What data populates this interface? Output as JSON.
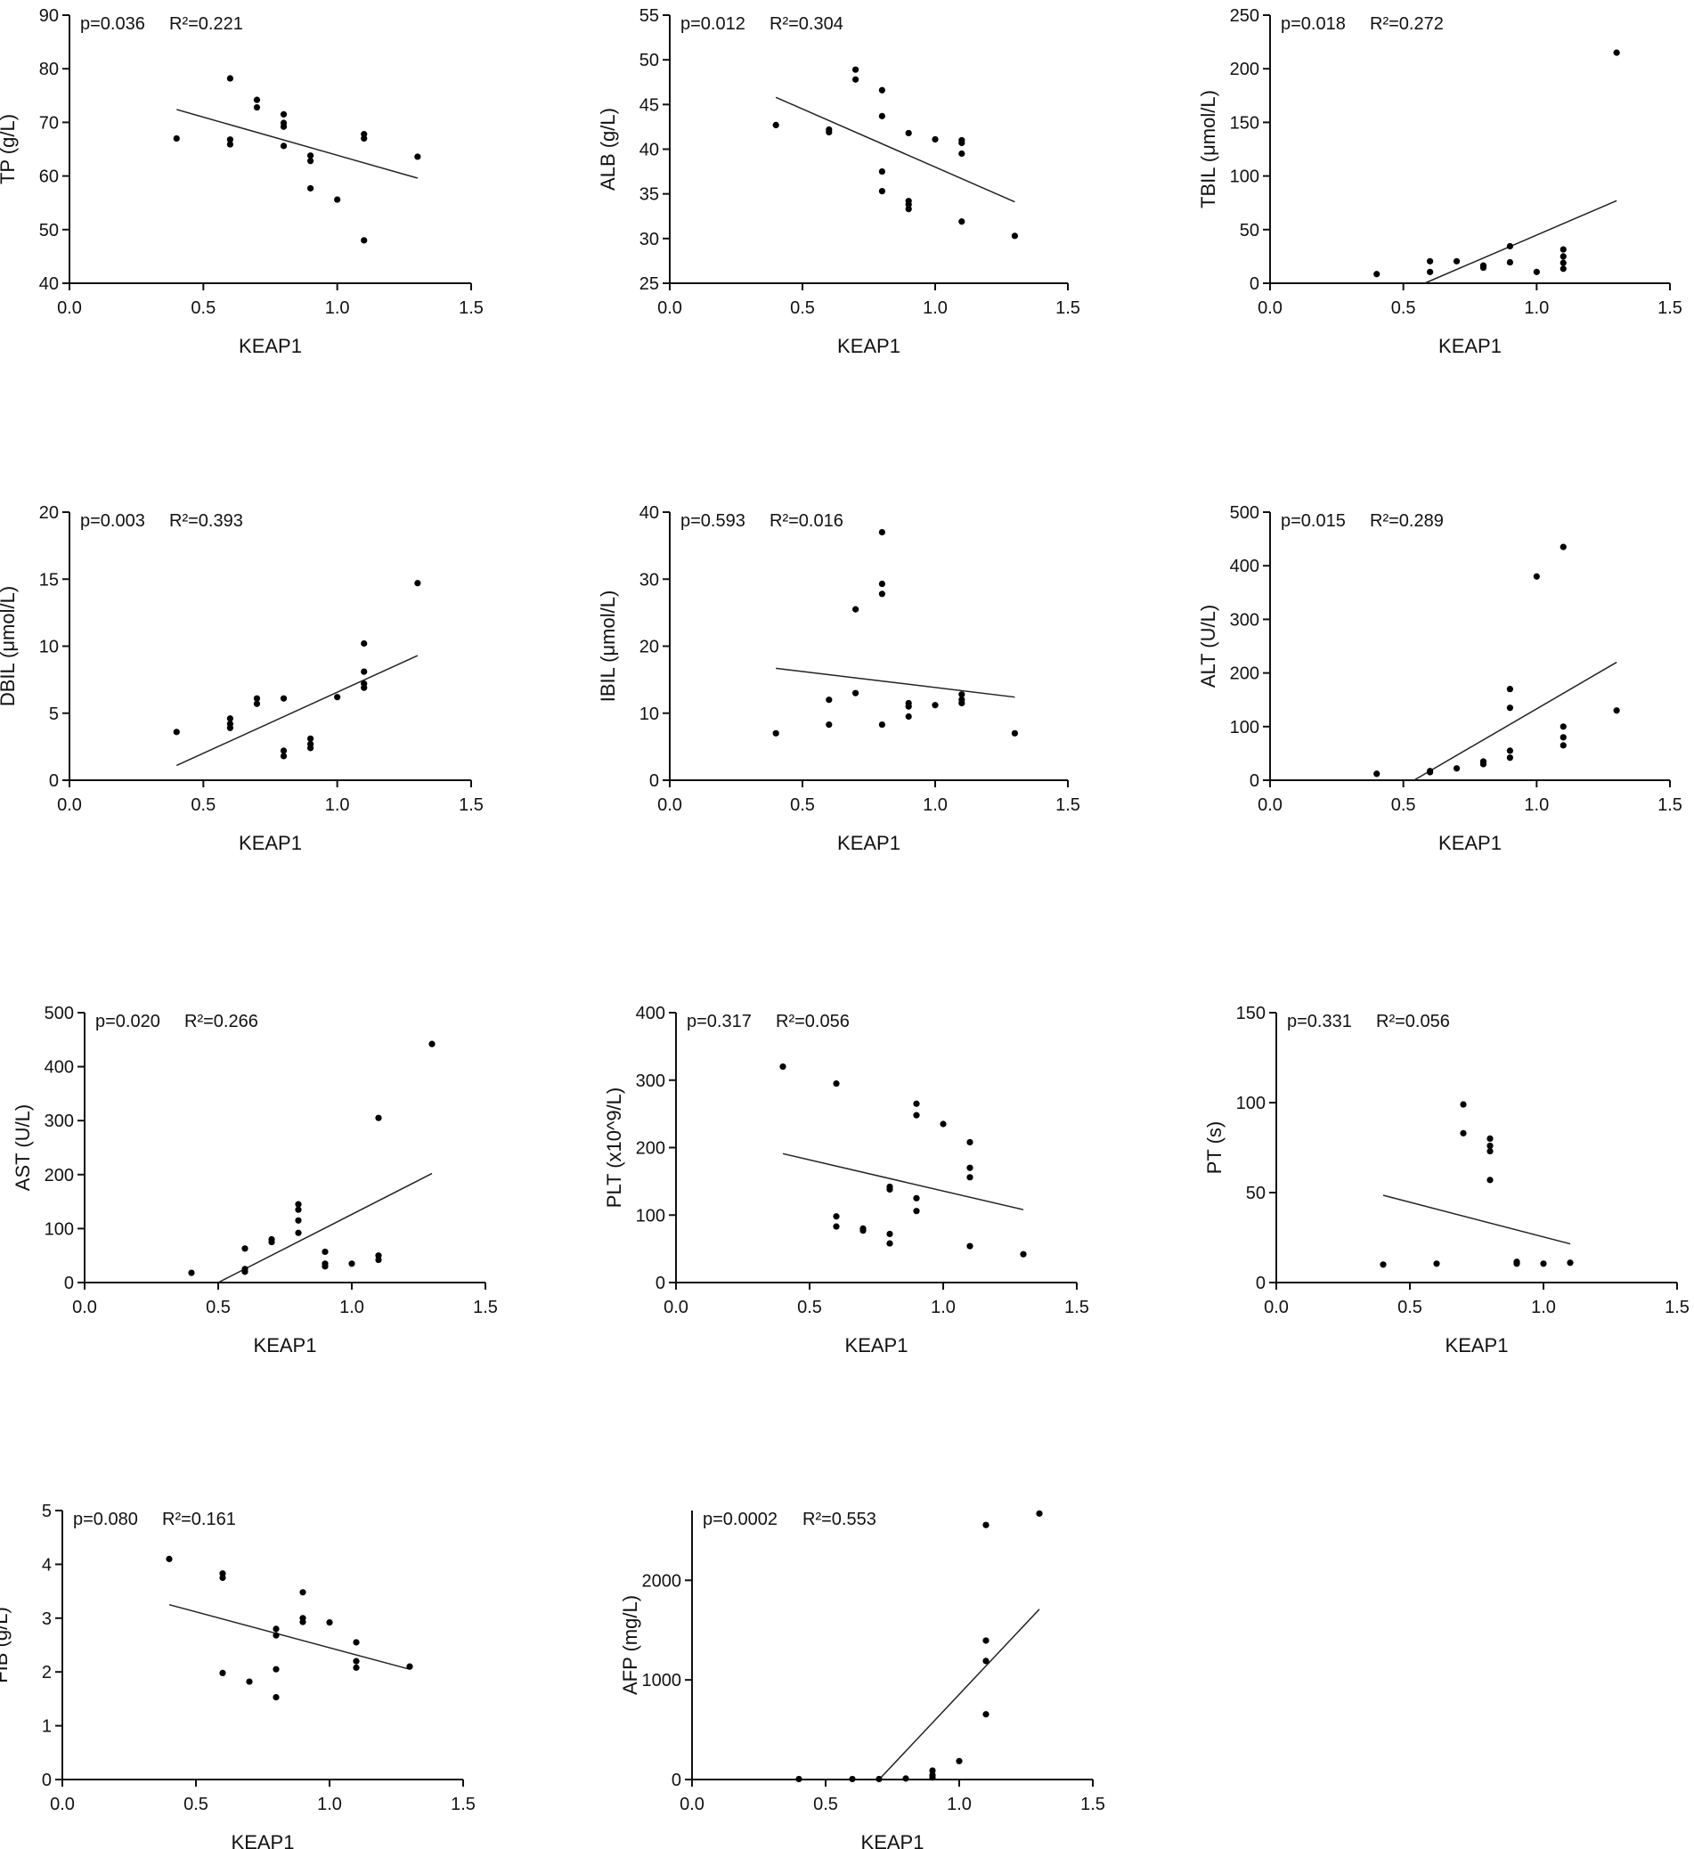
{
  "figure": {
    "panel_count": 11,
    "colors": {
      "axis": "#111111",
      "point": "#000000",
      "fit_line": "#222222",
      "background": "#ffffff"
    }
  },
  "chart_data": [
    {
      "id": "tp",
      "type": "scatter",
      "title": "",
      "xlabel": "KEAP1",
      "ylabel": "TP (g/L)",
      "xlim": [
        0,
        1.5
      ],
      "ylim": [
        40,
        90
      ],
      "xticks": [
        0,
        0.5,
        1,
        1.5
      ],
      "xtick_labels": [
        "0.0",
        "0.5",
        "1.0",
        "1.5"
      ],
      "yticks": [
        40,
        50,
        60,
        70,
        80,
        90
      ],
      "ytick_labels": [
        "40",
        "50",
        "60",
        "70",
        "80",
        "90"
      ],
      "p_label": "p=0.036",
      "r2_label": "R²=0.221",
      "points": [
        [
          0.4,
          67
        ],
        [
          0.6,
          78.2
        ],
        [
          0.6,
          66.8
        ],
        [
          0.6,
          65.9
        ],
        [
          0.7,
          74.2
        ],
        [
          0.7,
          72.8
        ],
        [
          0.8,
          71.5
        ],
        [
          0.8,
          69.9
        ],
        [
          0.8,
          69.2
        ],
        [
          0.8,
          65.6
        ],
        [
          0.9,
          63.8
        ],
        [
          0.9,
          62.8
        ],
        [
          0.9,
          57.7
        ],
        [
          1.0,
          55.6
        ],
        [
          1.1,
          67.8
        ],
        [
          1.1,
          67
        ],
        [
          1.1,
          48
        ],
        [
          1.3,
          63.6
        ]
      ],
      "fit_line": [
        [
          0.4,
          72.4
        ],
        [
          1.3,
          59.6
        ]
      ]
    },
    {
      "id": "alb",
      "type": "scatter",
      "title": "",
      "xlabel": "KEAP1",
      "ylabel": "ALB (g/L)",
      "xlim": [
        0,
        1.5
      ],
      "ylim": [
        25,
        55
      ],
      "xticks": [
        0,
        0.5,
        1,
        1.5
      ],
      "xtick_labels": [
        "0.0",
        "0.5",
        "1.0",
        "1.5"
      ],
      "yticks": [
        25,
        30,
        35,
        40,
        45,
        50,
        55
      ],
      "ytick_labels": [
        "25",
        "30",
        "35",
        "40",
        "45",
        "50",
        "55"
      ],
      "p_label": "p=0.012",
      "r2_label": "R²=0.304",
      "points": [
        [
          0.4,
          42.7
        ],
        [
          0.6,
          42.2
        ],
        [
          0.6,
          41.9
        ],
        [
          0.7,
          48.9
        ],
        [
          0.7,
          47.8
        ],
        [
          0.8,
          46.6
        ],
        [
          0.8,
          43.7
        ],
        [
          0.8,
          37.5
        ],
        [
          0.8,
          35.3
        ],
        [
          0.9,
          41.8
        ],
        [
          0.9,
          34.2
        ],
        [
          0.9,
          33.8
        ],
        [
          0.9,
          33.3
        ],
        [
          1.0,
          41.1
        ],
        [
          1.1,
          41
        ],
        [
          1.1,
          40.7
        ],
        [
          1.1,
          39.5
        ],
        [
          1.1,
          31.9
        ],
        [
          1.3,
          30.3
        ]
      ],
      "fit_line": [
        [
          0.4,
          45.8
        ],
        [
          1.3,
          34.1
        ]
      ]
    },
    {
      "id": "tbil",
      "type": "scatter",
      "title": "",
      "xlabel": "KEAP1",
      "ylabel": "TBIL (μmol/L)",
      "xlim": [
        0,
        1.5
      ],
      "ylim": [
        0,
        250
      ],
      "xticks": [
        0,
        0.5,
        1,
        1.5
      ],
      "xtick_labels": [
        "0.0",
        "0.5",
        "1.0",
        "1.5"
      ],
      "yticks": [
        0,
        50,
        100,
        150,
        200,
        250
      ],
      "ytick_labels": [
        "0",
        "50",
        "100",
        "150",
        "200",
        "250"
      ],
      "p_label": "p=0.018",
      "r2_label": "R²=0.272",
      "points": [
        [
          0.4,
          8.5
        ],
        [
          0.6,
          20.5
        ],
        [
          0.6,
          10.5
        ],
        [
          0.7,
          20.5
        ],
        [
          0.8,
          16.5
        ],
        [
          0.8,
          14.5
        ],
        [
          0.9,
          34.5
        ],
        [
          0.9,
          19.5
        ],
        [
          1.0,
          10.5
        ],
        [
          1.1,
          31.5
        ],
        [
          1.1,
          25
        ],
        [
          1.1,
          19
        ],
        [
          1.1,
          13.5
        ],
        [
          1.3,
          215
        ]
      ],
      "fit_line": [
        [
          0.58,
          0
        ],
        [
          1.3,
          77
        ]
      ]
    },
    {
      "id": "dbil",
      "type": "scatter",
      "title": "",
      "xlabel": "KEAP1",
      "ylabel": "DBIL (μmol/L)",
      "xlim": [
        0,
        1.5
      ],
      "ylim": [
        0,
        20
      ],
      "xticks": [
        0,
        0.5,
        1,
        1.5
      ],
      "xtick_labels": [
        "0.0",
        "0.5",
        "1.0",
        "1.5"
      ],
      "yticks": [
        0,
        5,
        10,
        15,
        20
      ],
      "ytick_labels": [
        "0",
        "5",
        "10",
        "15",
        "20"
      ],
      "p_label": "p=0.003",
      "r2_label": "R²=0.393",
      "points": [
        [
          0.4,
          3.6
        ],
        [
          0.6,
          4.6
        ],
        [
          0.6,
          4.2
        ],
        [
          0.6,
          3.9
        ],
        [
          0.7,
          6.1
        ],
        [
          0.7,
          5.7
        ],
        [
          0.8,
          6.1
        ],
        [
          0.8,
          2.2
        ],
        [
          0.8,
          1.8
        ],
        [
          0.9,
          3.1
        ],
        [
          0.9,
          2.7
        ],
        [
          0.9,
          2.4
        ],
        [
          1.0,
          6.2
        ],
        [
          1.1,
          10.2
        ],
        [
          1.1,
          8.1
        ],
        [
          1.1,
          7.2
        ],
        [
          1.1,
          6.9
        ],
        [
          1.3,
          14.7
        ]
      ],
      "fit_line": [
        [
          0.4,
          1.1
        ],
        [
          1.3,
          9.3
        ]
      ]
    },
    {
      "id": "ibil",
      "type": "scatter",
      "title": "",
      "xlabel": "KEAP1",
      "ylabel": "IBIL (μmol/L)",
      "xlim": [
        0,
        1.5
      ],
      "ylim": [
        0,
        40
      ],
      "xticks": [
        0,
        0.5,
        1,
        1.5
      ],
      "xtick_labels": [
        "0.0",
        "0.5",
        "1.0",
        "1.5"
      ],
      "yticks": [
        0,
        10,
        20,
        30,
        40
      ],
      "ytick_labels": [
        "0",
        "10",
        "20",
        "30",
        "40"
      ],
      "p_label": "p=0.593",
      "r2_label": "R²=0.016",
      "points": [
        [
          0.4,
          7
        ],
        [
          0.6,
          12
        ],
        [
          0.6,
          8.3
        ],
        [
          0.7,
          25.5
        ],
        [
          0.7,
          13
        ],
        [
          0.8,
          37
        ],
        [
          0.8,
          29.3
        ],
        [
          0.8,
          27.8
        ],
        [
          0.8,
          8.3
        ],
        [
          0.9,
          11.5
        ],
        [
          0.9,
          11
        ],
        [
          0.9,
          9.5
        ],
        [
          1.0,
          11.2
        ],
        [
          1.1,
          12.8
        ],
        [
          1.1,
          12
        ],
        [
          1.1,
          11.5
        ],
        [
          1.3,
          7
        ]
      ],
      "fit_line": [
        [
          0.4,
          16.7
        ],
        [
          1.3,
          12.4
        ]
      ]
    },
    {
      "id": "alt",
      "type": "scatter",
      "title": "",
      "xlabel": "KEAP1",
      "ylabel": "ALT (U/L)",
      "xlim": [
        0,
        1.5
      ],
      "ylim": [
        0,
        500
      ],
      "xticks": [
        0,
        0.5,
        1,
        1.5
      ],
      "xtick_labels": [
        "0.0",
        "0.5",
        "1.0",
        "1.5"
      ],
      "yticks": [
        0,
        100,
        200,
        300,
        400,
        500
      ],
      "ytick_labels": [
        "0",
        "100",
        "200",
        "300",
        "400",
        "500"
      ],
      "p_label": "p=0.015",
      "r2_label": "R²=0.289",
      "points": [
        [
          0.4,
          12
        ],
        [
          0.6,
          17
        ],
        [
          0.6,
          15
        ],
        [
          0.7,
          22
        ],
        [
          0.8,
          35
        ],
        [
          0.8,
          30
        ],
        [
          0.9,
          170
        ],
        [
          0.9,
          135
        ],
        [
          0.9,
          55
        ],
        [
          0.9,
          42
        ],
        [
          1.0,
          380
        ],
        [
          1.1,
          435
        ],
        [
          1.1,
          100
        ],
        [
          1.1,
          80
        ],
        [
          1.1,
          65
        ],
        [
          1.3,
          130
        ]
      ],
      "fit_line": [
        [
          0.54,
          0
        ],
        [
          1.3,
          220
        ]
      ]
    },
    {
      "id": "ast",
      "type": "scatter",
      "title": "",
      "xlabel": "KEAP1",
      "ylabel": "AST (U/L)",
      "xlim": [
        0,
        1.5
      ],
      "ylim": [
        0,
        500
      ],
      "xticks": [
        0,
        0.5,
        1,
        1.5
      ],
      "xtick_labels": [
        "0.0",
        "0.5",
        "1.0",
        "1.5"
      ],
      "yticks": [
        0,
        100,
        200,
        300,
        400,
        500
      ],
      "ytick_labels": [
        "0",
        "100",
        "200",
        "300",
        "400",
        "500"
      ],
      "p_label": "p=0.020",
      "r2_label": "R²=0.266",
      "points": [
        [
          0.4,
          18
        ],
        [
          0.6,
          63
        ],
        [
          0.6,
          25
        ],
        [
          0.6,
          20
        ],
        [
          0.7,
          80
        ],
        [
          0.7,
          75
        ],
        [
          0.8,
          145
        ],
        [
          0.8,
          135
        ],
        [
          0.8,
          115
        ],
        [
          0.8,
          92
        ],
        [
          0.9,
          57
        ],
        [
          0.9,
          35
        ],
        [
          0.9,
          30
        ],
        [
          1.0,
          35
        ],
        [
          1.1,
          305
        ],
        [
          1.1,
          50
        ],
        [
          1.1,
          42
        ],
        [
          1.3,
          442
        ]
      ],
      "fit_line": [
        [
          0.5,
          0
        ],
        [
          1.3,
          202
        ]
      ]
    },
    {
      "id": "plt",
      "type": "scatter",
      "title": "",
      "xlabel": "KEAP1",
      "ylabel": "PLT (x10^9/L)",
      "xlim": [
        0,
        1.5
      ],
      "ylim": [
        0,
        400
      ],
      "xticks": [
        0,
        0.5,
        1,
        1.5
      ],
      "xtick_labels": [
        "0.0",
        "0.5",
        "1.0",
        "1.5"
      ],
      "yticks": [
        0,
        100,
        200,
        300,
        400
      ],
      "ytick_labels": [
        "0",
        "100",
        "200",
        "300",
        "400"
      ],
      "p_label": "p=0.317",
      "r2_label": "R²=0.056",
      "points": [
        [
          0.4,
          320
        ],
        [
          0.6,
          295
        ],
        [
          0.6,
          98
        ],
        [
          0.6,
          83
        ],
        [
          0.7,
          80
        ],
        [
          0.7,
          77
        ],
        [
          0.8,
          142
        ],
        [
          0.8,
          138
        ],
        [
          0.8,
          72
        ],
        [
          0.8,
          58
        ],
        [
          0.9,
          265
        ],
        [
          0.9,
          248
        ],
        [
          0.9,
          125
        ],
        [
          0.9,
          106
        ],
        [
          1.0,
          235
        ],
        [
          1.1,
          208
        ],
        [
          1.1,
          170
        ],
        [
          1.1,
          156
        ],
        [
          1.1,
          54
        ],
        [
          1.3,
          42
        ]
      ],
      "fit_line": [
        [
          0.4,
          191
        ],
        [
          1.3,
          108
        ]
      ]
    },
    {
      "id": "pt",
      "type": "scatter",
      "title": "",
      "xlabel": "KEAP1",
      "ylabel": "PT (s)",
      "xlim": [
        0,
        1.5
      ],
      "ylim": [
        0,
        150
      ],
      "xticks": [
        0,
        0.5,
        1,
        1.5
      ],
      "xtick_labels": [
        "0.0",
        "0.5",
        "1.0",
        "1.5"
      ],
      "yticks": [
        0,
        50,
        100,
        150
      ],
      "ytick_labels": [
        "0",
        "50",
        "100",
        "150"
      ],
      "p_label": "p=0.331",
      "r2_label": "R²=0.056",
      "points": [
        [
          0.4,
          10
        ],
        [
          0.6,
          10.5
        ],
        [
          0.7,
          99
        ],
        [
          0.7,
          83
        ],
        [
          0.8,
          80
        ],
        [
          0.8,
          76
        ],
        [
          0.8,
          73
        ],
        [
          0.8,
          57
        ],
        [
          0.9,
          11.5
        ],
        [
          0.9,
          10.5
        ],
        [
          1.0,
          10.5
        ],
        [
          1.1,
          11
        ]
      ],
      "fit_line": [
        [
          0.4,
          48.5
        ],
        [
          1.1,
          21.5
        ]
      ]
    },
    {
      "id": "fib",
      "type": "scatter",
      "title": "",
      "xlabel": "KEAP1",
      "ylabel": "FIB (g/L)",
      "xlim": [
        0,
        1.5
      ],
      "ylim": [
        0,
        5
      ],
      "xticks": [
        0,
        0.5,
        1,
        1.5
      ],
      "xtick_labels": [
        "0.0",
        "0.5",
        "1.0",
        "1.5"
      ],
      "yticks": [
        0,
        1,
        2,
        3,
        4,
        5
      ],
      "ytick_labels": [
        "0",
        "1",
        "2",
        "3",
        "4",
        "5"
      ],
      "p_label": "p=0.080",
      "r2_label": "R²=0.161",
      "points": [
        [
          0.4,
          4.1
        ],
        [
          0.6,
          3.83
        ],
        [
          0.6,
          3.75
        ],
        [
          0.6,
          1.98
        ],
        [
          0.7,
          1.82
        ],
        [
          0.8,
          2.8
        ],
        [
          0.8,
          2.68
        ],
        [
          0.8,
          2.05
        ],
        [
          0.8,
          1.53
        ],
        [
          0.9,
          3.48
        ],
        [
          0.9,
          3
        ],
        [
          0.9,
          2.93
        ],
        [
          1.0,
          2.92
        ],
        [
          1.1,
          2.55
        ],
        [
          1.1,
          2.2
        ],
        [
          1.1,
          2.08
        ],
        [
          1.3,
          2.1
        ]
      ],
      "fit_line": [
        [
          0.4,
          3.25
        ],
        [
          1.3,
          2.05
        ]
      ]
    },
    {
      "id": "afp",
      "type": "scatter",
      "title": "",
      "xlabel": "KEAP1",
      "ylabel": "AFP (mg/L)",
      "xlim": [
        0,
        1.5
      ],
      "ylim": [
        0,
        2700
      ],
      "xticks": [
        0,
        0.5,
        1,
        1.5
      ],
      "xtick_labels": [
        "0.0",
        "0.5",
        "1.0",
        "1.5"
      ],
      "yticks": [
        0,
        1000,
        2000
      ],
      "ytick_labels": [
        "0",
        "1000",
        "2000"
      ],
      "p_label": "p=0.0002",
      "r2_label": "R²=0.553",
      "points": [
        [
          0.4,
          5
        ],
        [
          0.6,
          5
        ],
        [
          0.7,
          5
        ],
        [
          0.8,
          10
        ],
        [
          0.9,
          90
        ],
        [
          0.9,
          45
        ],
        [
          0.9,
          20
        ],
        [
          1.0,
          185
        ],
        [
          1.1,
          2555
        ],
        [
          1.1,
          1395
        ],
        [
          1.1,
          1190
        ],
        [
          1.1,
          655
        ],
        [
          1.3,
          2670
        ]
      ],
      "fit_line": [
        [
          0.7,
          0
        ],
        [
          1.3,
          1710
        ]
      ]
    }
  ]
}
